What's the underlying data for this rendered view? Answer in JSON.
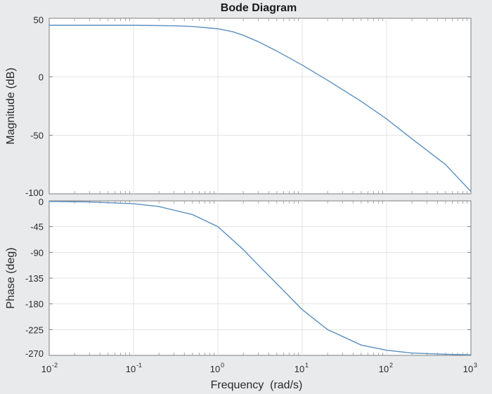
{
  "chart_data": {
    "type": "line",
    "title": "Bode Diagram",
    "xlabel": "Frequency  (rad/s)",
    "x_scale": "log",
    "xlim": [
      0.01,
      1000
    ],
    "x_ticks": [
      {
        "base": "10",
        "exp": "-2"
      },
      {
        "base": "10",
        "exp": "-1"
      },
      {
        "base": "10",
        "exp": "0"
      },
      {
        "base": "10",
        "exp": "1"
      },
      {
        "base": "10",
        "exp": "2"
      },
      {
        "base": "10",
        "exp": "3"
      }
    ],
    "grid": true,
    "line_color": "#5b8fc0",
    "panels": [
      {
        "ylabel": "Magnitude (dB)",
        "ylim": [
          -100,
          50
        ],
        "yticks": [
          "50",
          "0",
          "-50",
          "-100"
        ],
        "series": [
          {
            "x": [
              0.01,
              0.1,
              0.3,
              0.5,
              1,
              1.5,
              2,
              3,
              5,
              10,
              20,
              50,
              100,
              200,
              500,
              1000
            ],
            "y": [
              44,
              44,
              43.6,
              43,
              41,
              38.5,
              35.5,
              30,
              22,
              10,
              -3,
              -21,
              -36,
              -53,
              -75,
              -98
            ]
          }
        ]
      },
      {
        "ylabel": "Phase (deg)",
        "ylim": [
          -270,
          0
        ],
        "yticks": [
          "0",
          "-45",
          "-90",
          "-135",
          "-180",
          "-225",
          "-270"
        ],
        "series": [
          {
            "x": [
              0.01,
              0.03,
              0.1,
              0.2,
              0.5,
              1,
              2,
              3,
              5,
              10,
              20,
              50,
              100,
              200,
              500,
              1000
            ],
            "y": [
              -1,
              -2,
              -5,
              -10,
              -24,
              -45,
              -85,
              -112,
              -145,
              -190,
              -225,
              -252,
              -261,
              -266,
              -268,
              -269
            ]
          }
        ]
      }
    ]
  }
}
